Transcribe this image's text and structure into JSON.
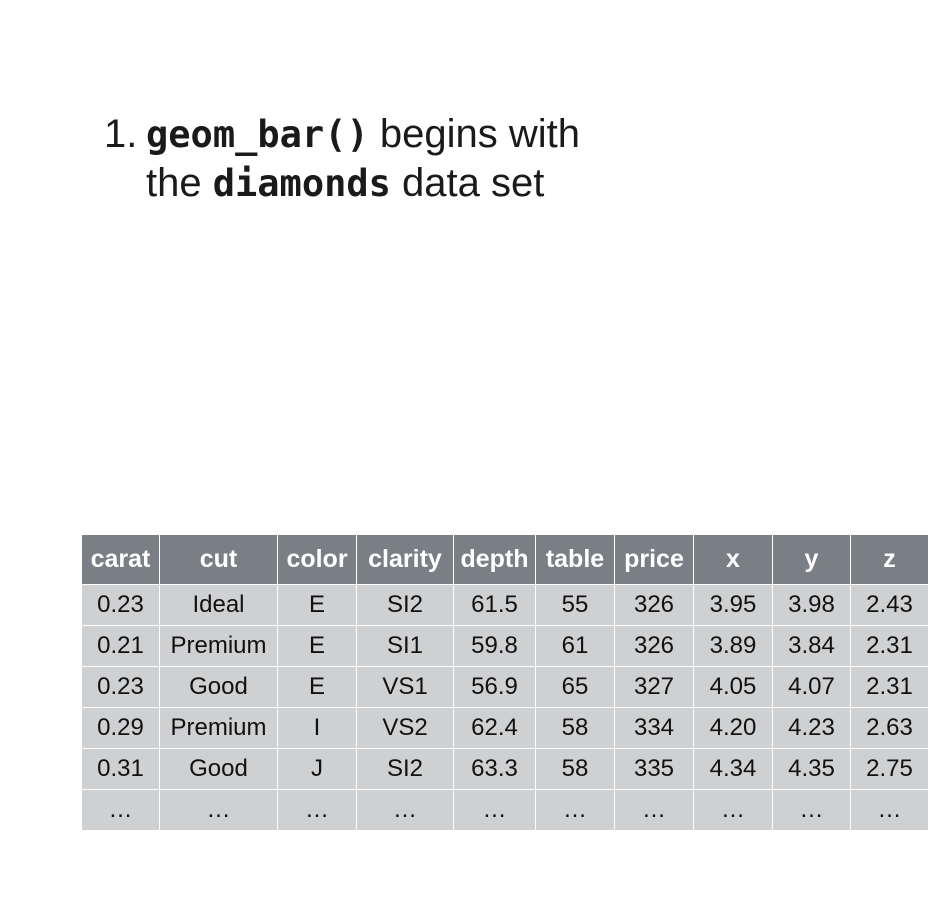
{
  "heading": {
    "number": "1.",
    "func": "geom_bar()",
    "text1": " begins with",
    "text2a": "the ",
    "dataset": "diamonds",
    "text2b": " data set"
  },
  "table": {
    "columns": [
      "carat",
      "cut",
      "color",
      "clarity",
      "depth",
      "table",
      "price",
      "x",
      "y",
      "z"
    ],
    "rows": [
      [
        "0.23",
        "Ideal",
        "E",
        "SI2",
        "61.5",
        "55",
        "326",
        "3.95",
        "3.98",
        "2.43"
      ],
      [
        "0.21",
        "Premium",
        "E",
        "SI1",
        "59.8",
        "61",
        "326",
        "3.89",
        "3.84",
        "2.31"
      ],
      [
        "0.23",
        "Good",
        "E",
        "VS1",
        "56.9",
        "65",
        "327",
        "4.05",
        "4.07",
        "2.31"
      ],
      [
        "0.29",
        "Premium",
        "I",
        "VS2",
        "62.4",
        "58",
        "334",
        "4.20",
        "4.23",
        "2.63"
      ],
      [
        "0.31",
        "Good",
        "J",
        "SI2",
        "63.3",
        "58",
        "335",
        "4.34",
        "4.35",
        "2.75"
      ],
      [
        "…",
        "…",
        "…",
        "…",
        "…",
        "…",
        "…",
        "…",
        "…",
        "…"
      ]
    ]
  }
}
